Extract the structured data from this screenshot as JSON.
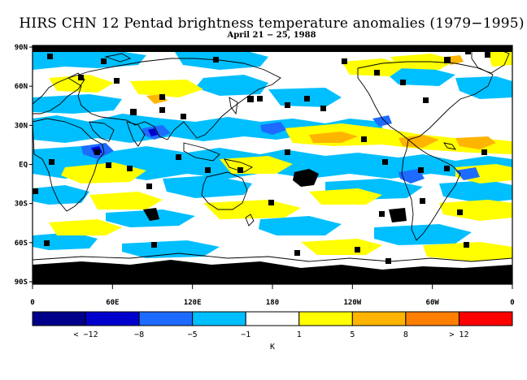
{
  "title": "HIRS CHN 12 Pentad brightness temperature anomalies (1979−1995)",
  "subtitle": "April 21 − 25, 1988",
  "map": {
    "lon_ticks": [
      "0",
      "60E",
      "120E",
      "180",
      "120W",
      "60W",
      "0"
    ],
    "lat_ticks": [
      "90N",
      "60N",
      "30N",
      "EQ",
      "30S",
      "60S",
      "90S"
    ],
    "palette": {
      "no_data": "#000000",
      "coastline": "#000000"
    }
  },
  "colorbar": {
    "unit": "K",
    "bins": [
      {
        "color": "#00008b",
        "label": "< −12"
      },
      {
        "color": "#0000cd",
        "label": "−8"
      },
      {
        "color": "#1e6bff",
        "label": "−5"
      },
      {
        "color": "#00bfff",
        "label": "−1"
      },
      {
        "color": "#ffffff",
        "label": "1"
      },
      {
        "color": "#ffff00",
        "label": "5"
      },
      {
        "color": "#ffb400",
        "label": "8"
      },
      {
        "color": "#ff7f00",
        "label": "> 12"
      },
      {
        "color": "#ff0000",
        "label": ""
      }
    ],
    "boundary_labels": [
      "< −12",
      "−8",
      "−5",
      "−1",
      "1",
      "5",
      "8",
      "> 12"
    ]
  }
}
